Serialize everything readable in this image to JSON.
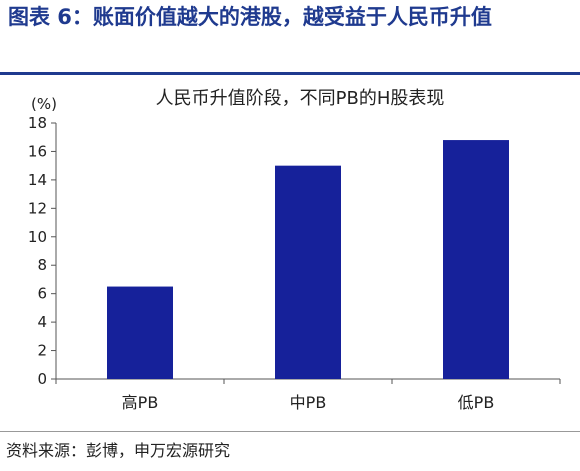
{
  "figure": {
    "title": "图表 6：账面价值越大的港股，越受益于人民币升值",
    "source": "资料来源：彭博，申万宏源研究"
  },
  "colors": {
    "title": "#1f3a8f",
    "bar": "#16219a",
    "axis": "#555555"
  },
  "chart_data": {
    "type": "bar",
    "title": "人民币升值阶段，不同PB的H股表现",
    "ylabel": "(%)",
    "xlabel": "",
    "categories": [
      "高PB",
      "中PB",
      "低PB"
    ],
    "values": [
      6.5,
      15.0,
      16.8
    ],
    "ylim": [
      0,
      18
    ],
    "yticks": [
      0,
      2,
      4,
      6,
      8,
      10,
      12,
      14,
      16,
      18
    ],
    "grid": false,
    "legend": "none"
  }
}
